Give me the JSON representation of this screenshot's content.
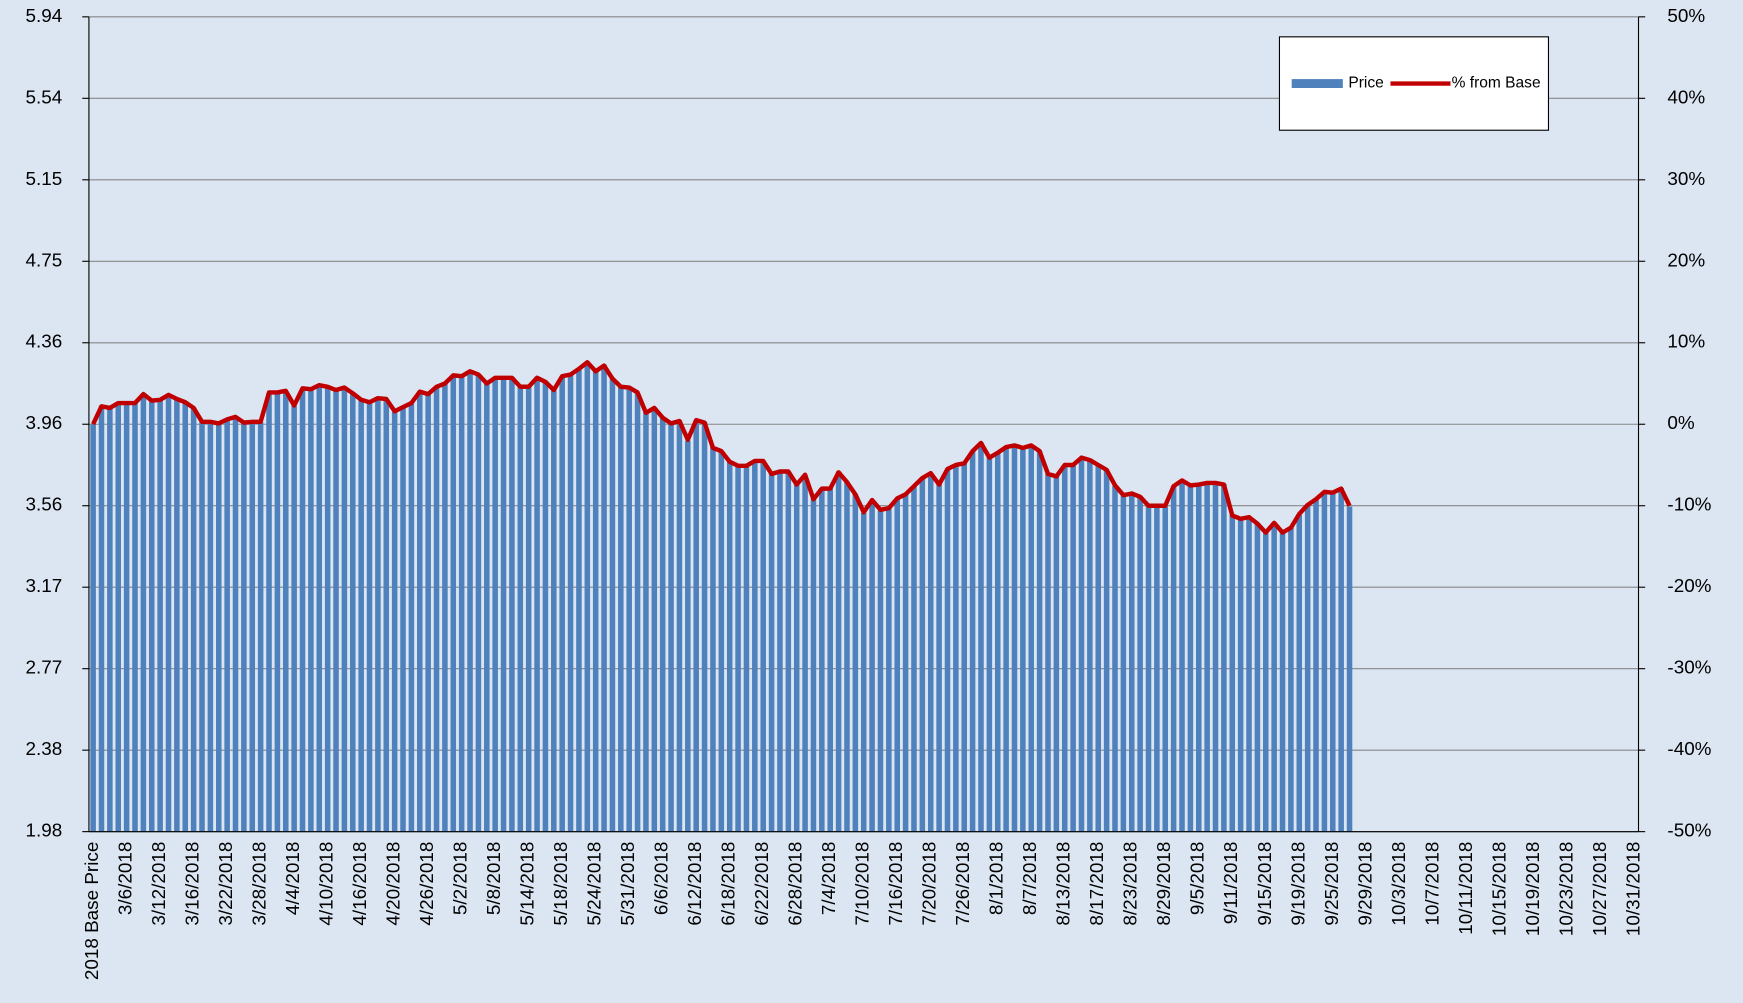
{
  "chart_data": {
    "type": "bar",
    "categories": [
      "2018 Base Price",
      null,
      null,
      null,
      "3/6/2018",
      null,
      null,
      null,
      "3/12/2018",
      null,
      null,
      null,
      "3/16/2018",
      null,
      null,
      null,
      "3/22/2018",
      null,
      null,
      null,
      "3/28/2018",
      null,
      null,
      null,
      "4/4/2018",
      null,
      null,
      null,
      "4/10/2018",
      null,
      null,
      null,
      "4/16/2018",
      null,
      null,
      null,
      "4/20/2018",
      null,
      null,
      null,
      "4/26/2018",
      null,
      null,
      null,
      "5/2/2018",
      null,
      null,
      null,
      "5/8/2018",
      null,
      null,
      null,
      "5/14/2018",
      null,
      null,
      null,
      "5/18/2018",
      null,
      null,
      null,
      "5/24/2018",
      null,
      null,
      null,
      "5/31/2018",
      null,
      null,
      null,
      "6/6/2018",
      null,
      null,
      null,
      "6/12/2018",
      null,
      null,
      null,
      "6/18/2018",
      null,
      null,
      null,
      "6/22/2018",
      null,
      null,
      null,
      "6/28/2018",
      null,
      null,
      null,
      "7/4/2018",
      null,
      null,
      null,
      "7/10/2018",
      null,
      null,
      null,
      "7/16/2018",
      null,
      null,
      null,
      "7/20/2018",
      null,
      null,
      null,
      "7/26/2018",
      null,
      null,
      null,
      "8/1/2018",
      null,
      null,
      null,
      "8/7/2018",
      null,
      null,
      null,
      "8/13/2018",
      null,
      null,
      null,
      "8/17/2018",
      null,
      null,
      null,
      "8/23/2018",
      null,
      null,
      null,
      "8/29/2018",
      null,
      null,
      null,
      "9/5/2018",
      null,
      null,
      null,
      "9/11/2018",
      null,
      null,
      null,
      "9/15/2018",
      null,
      null,
      null,
      "9/19/2018",
      null,
      null,
      null,
      "9/25/2018",
      null,
      null,
      null,
      "9/29/2018",
      null,
      null,
      null,
      "10/3/2018",
      null,
      null,
      null,
      "10/7/2018",
      null,
      null,
      null,
      "10/11/2018",
      null,
      null,
      null,
      "10/15/2018",
      null,
      null,
      null,
      "10/19/2018",
      null,
      null,
      null,
      "10/23/2018",
      null,
      null,
      null,
      "10/27/2018",
      null,
      null,
      null,
      "10/31/2018"
    ],
    "series": [
      {
        "name": "Price",
        "color": "#4f81bd",
        "values": [
          3.96,
          4.05,
          4.04,
          4.06,
          4.06,
          4.06,
          4.11,
          4.07,
          4.08,
          4.1,
          4.08,
          4.07,
          4.04,
          3.97,
          3.97,
          3.96,
          3.98,
          4.0,
          3.97,
          3.97,
          3.97,
          4.11,
          4.11,
          4.12,
          4.05,
          4.13,
          4.13,
          4.15,
          4.14,
          4.13,
          4.14,
          4.11,
          4.08,
          4.07,
          4.09,
          4.08,
          4.02,
          4.04,
          4.06,
          4.12,
          4.11,
          4.14,
          4.16,
          4.2,
          4.19,
          4.22,
          4.2,
          4.16,
          4.19,
          4.19,
          4.19,
          4.14,
          4.14,
          4.19,
          4.17,
          4.13,
          4.19,
          4.2,
          4.23,
          4.26,
          4.22,
          4.25,
          4.18,
          4.14,
          4.14,
          4.11,
          4.02,
          4.04,
          3.99,
          3.96,
          3.98,
          3.88,
          3.98,
          3.97,
          3.85,
          3.83,
          3.78,
          3.76,
          3.76,
          3.78,
          3.78,
          3.72,
          3.73,
          3.73,
          3.67,
          3.71,
          3.6,
          3.65,
          3.65,
          3.73,
          3.68,
          3.62,
          3.53,
          3.59,
          3.54,
          3.55,
          3.6,
          3.62,
          3.66,
          3.7,
          3.72,
          3.67,
          3.74,
          3.76,
          3.77,
          3.83,
          3.87,
          3.8,
          3.82,
          3.85,
          3.86,
          3.84,
          3.86,
          3.83,
          3.72,
          3.71,
          3.76,
          3.76,
          3.8,
          3.79,
          3.76,
          3.74,
          3.66,
          3.62,
          3.62,
          3.61,
          3.56,
          3.56,
          3.56,
          3.66,
          3.69,
          3.66,
          3.67,
          3.67,
          3.67,
          3.67,
          3.52,
          3.5,
          3.51,
          3.48,
          3.43,
          3.48,
          3.43,
          3.46,
          3.52,
          3.57,
          3.6,
          3.63,
          3.63,
          3.65,
          3.56,
          null,
          null,
          null,
          null,
          null,
          null,
          null,
          null,
          null,
          null,
          null,
          null,
          null,
          null,
          null,
          null,
          null,
          null,
          null,
          null,
          null,
          null,
          null,
          null,
          null,
          null,
          null,
          null,
          null,
          null,
          null,
          null,
          null,
          null
        ]
      },
      {
        "name": "% from Base",
        "color": "#c00000",
        "type": "line",
        "axis": "y2",
        "values": [
          0,
          2.2,
          2.0,
          2.6,
          2.6,
          2.6,
          3.7,
          2.9,
          3.0,
          3.6,
          3.1,
          2.7,
          2.0,
          0.3,
          0.3,
          0.1,
          0.6,
          0.9,
          0.2,
          0.3,
          0.3,
          3.9,
          3.9,
          4.1,
          2.3,
          4.4,
          4.3,
          4.8,
          4.6,
          4.2,
          4.5,
          3.8,
          3.0,
          2.7,
          3.2,
          3.1,
          1.6,
          2.1,
          2.6,
          4.0,
          3.7,
          4.6,
          5.0,
          6.0,
          5.9,
          6.5,
          6.1,
          5.0,
          5.7,
          5.7,
          5.7,
          4.6,
          4.6,
          5.7,
          5.2,
          4.2,
          5.9,
          6.1,
          6.8,
          7.6,
          6.5,
          7.2,
          5.6,
          4.6,
          4.5,
          3.9,
          1.4,
          2.0,
          0.8,
          0.1,
          0.4,
          -1.9,
          0.5,
          0.2,
          -2.9,
          -3.3,
          -4.6,
          -5.1,
          -5.1,
          -4.5,
          -4.5,
          -6.1,
          -5.8,
          -5.8,
          -7.4,
          -6.2,
          -9.2,
          -7.9,
          -7.9,
          -5.9,
          -7.1,
          -8.6,
          -10.8,
          -9.3,
          -10.5,
          -10.3,
          -9.1,
          -8.6,
          -7.6,
          -6.6,
          -6.0,
          -7.4,
          -5.5,
          -5.0,
          -4.8,
          -3.3,
          -2.3,
          -4.1,
          -3.5,
          -2.8,
          -2.6,
          -2.9,
          -2.6,
          -3.3,
          -6.1,
          -6.4,
          -5.0,
          -5.0,
          -4.1,
          -4.4,
          -5.0,
          -5.6,
          -7.5,
          -8.7,
          -8.5,
          -8.9,
          -10.0,
          -10.0,
          -10.0,
          -7.6,
          -6.9,
          -7.5,
          -7.4,
          -7.2,
          -7.2,
          -7.4,
          -11.2,
          -11.6,
          -11.4,
          -12.2,
          -13.3,
          -12.1,
          -13.3,
          -12.7,
          -11.0,
          -9.9,
          -9.2,
          -8.3,
          -8.4,
          -7.9,
          -10.0,
          null,
          null,
          null,
          null,
          null,
          null,
          null,
          null,
          null,
          null,
          null,
          null,
          null,
          null,
          null,
          null,
          null,
          null,
          null,
          null,
          null,
          null,
          null,
          null,
          null,
          null,
          null,
          null,
          null,
          null,
          null,
          null,
          null,
          null
        ]
      }
    ],
    "ylim": [
      1.98,
      5.94
    ],
    "yticks": [
      1.98,
      {
        "value": 2.376,
        "label": "2.38"
      },
      {
        "value": 2.772,
        "label": "2.77"
      },
      {
        "value": 3.168,
        "label": "3.17"
      },
      {
        "value": 3.564,
        "label": "3.56"
      },
      3.96,
      {
        "value": 4.356,
        "label": "4.36"
      },
      {
        "value": 4.752,
        "label": "4.75"
      },
      {
        "value": 5.148,
        "label": "5.15"
      },
      {
        "value": 5.544,
        "label": "5.54"
      },
      5.94
    ],
    "y2lim": [
      -50,
      50
    ],
    "y2ticks": [
      {
        "value": -50,
        "label": "-50%"
      },
      {
        "value": -40,
        "label": "-40%"
      },
      {
        "value": -30,
        "label": "-30%"
      },
      {
        "value": -20,
        "label": "-20%"
      },
      {
        "value": -10,
        "label": "-10%"
      },
      {
        "value": 0,
        "label": "0%"
      },
      {
        "value": 10,
        "label": "10%"
      },
      {
        "value": 20,
        "label": "20%"
      },
      {
        "value": 30,
        "label": "30%"
      },
      {
        "value": 40,
        "label": "40%"
      },
      {
        "value": 50,
        "label": "50%"
      }
    ],
    "grid": true,
    "legend": "top-right"
  }
}
